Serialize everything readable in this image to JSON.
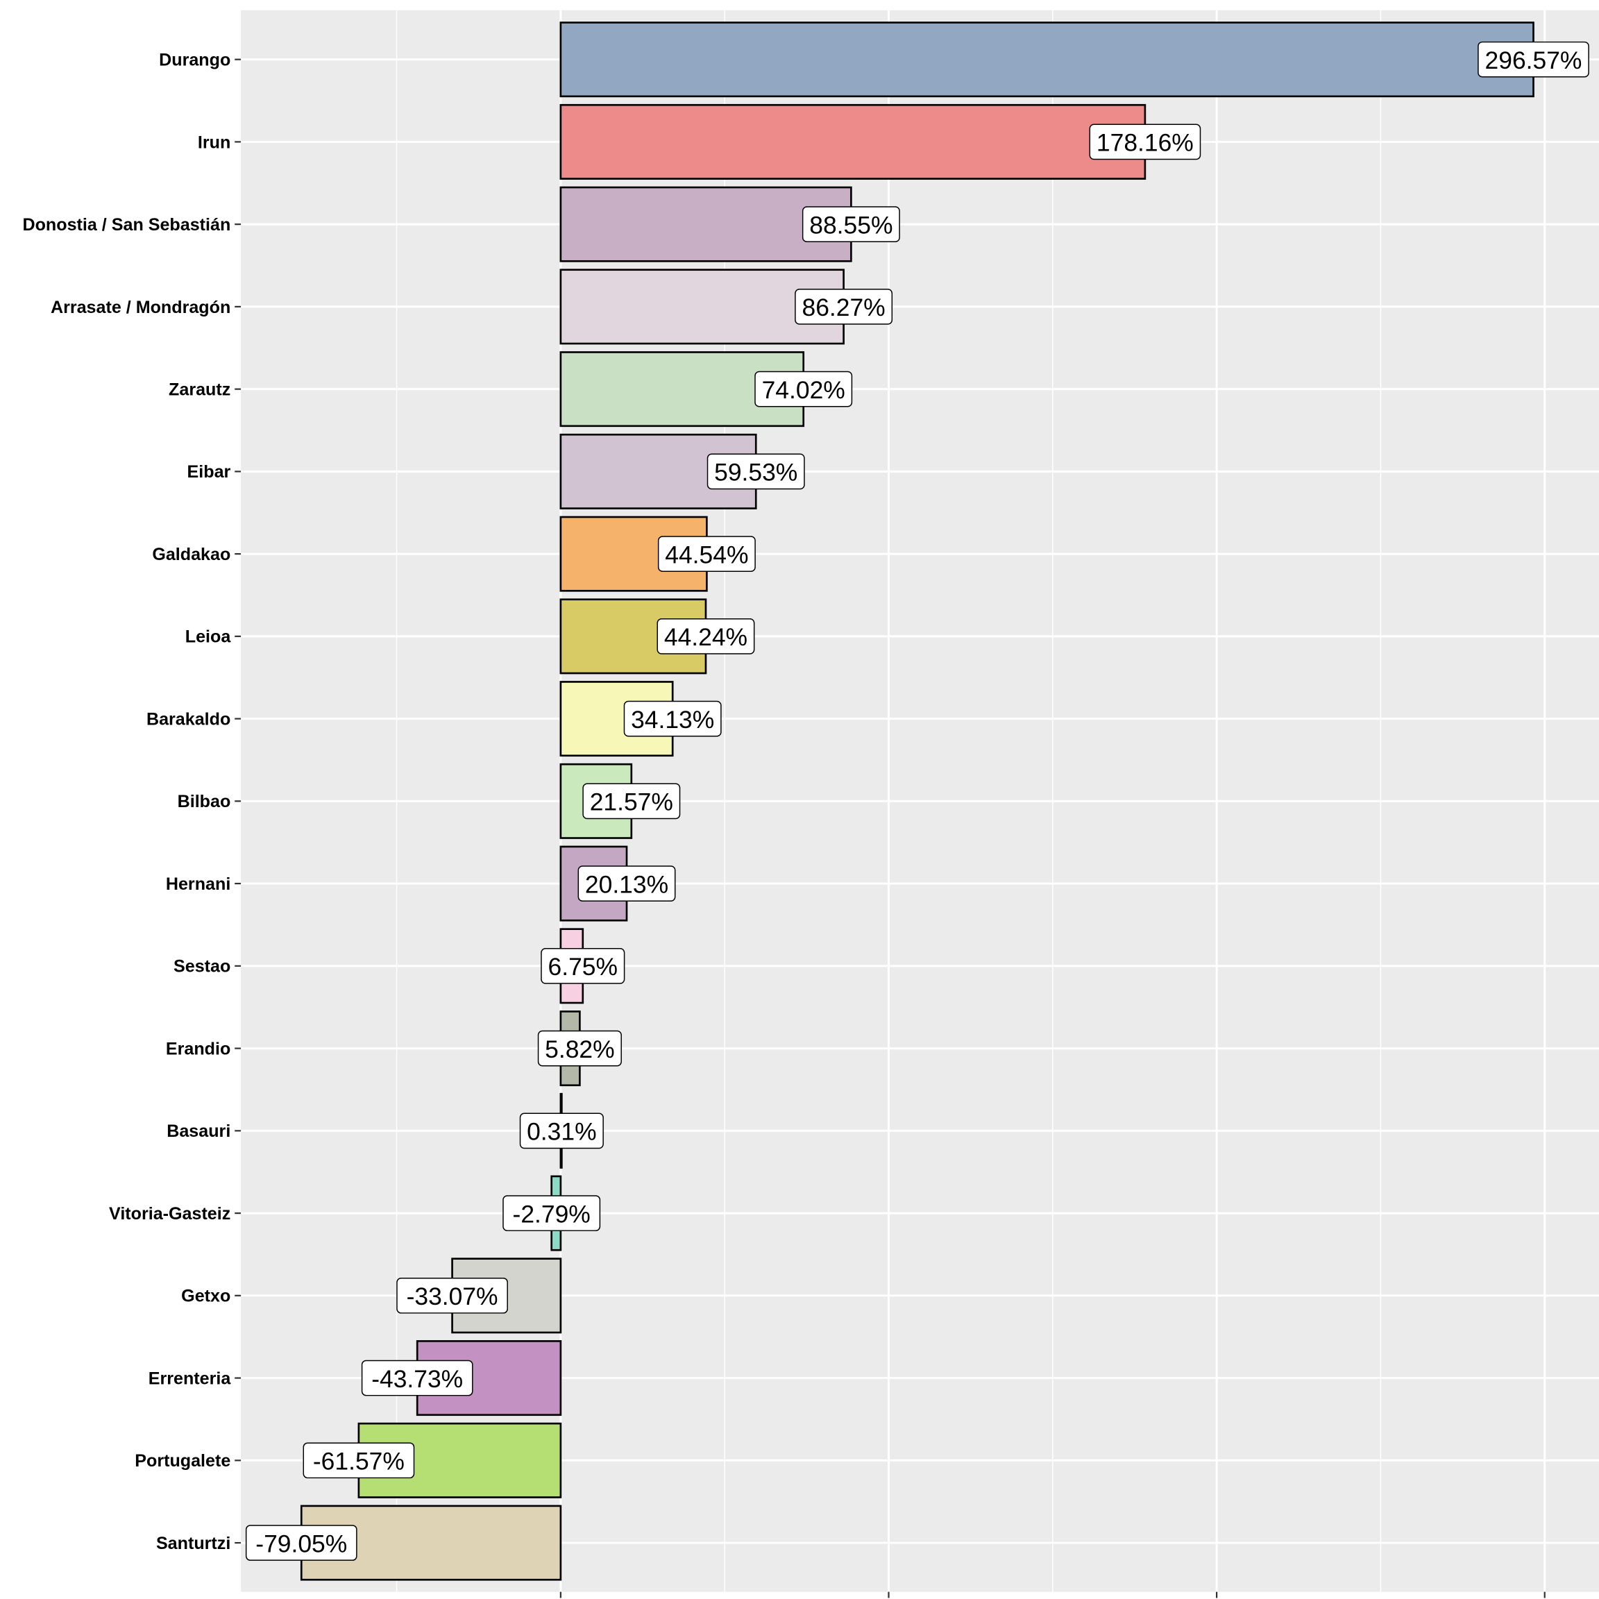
{
  "chart_data": {
    "type": "bar",
    "orientation": "horizontal",
    "title": "",
    "xlabel": "",
    "ylabel": "",
    "xlim": [
      -98,
      318
    ],
    "x_major_ticks": [
      0,
      100,
      200,
      300
    ],
    "x_tick_labels_shown": false,
    "grid": true,
    "categories": [
      "Durango",
      "Irun",
      "Donostia / San Sebastián",
      "Arrasate / Mondragón",
      "Zarautz",
      "Eibar",
      "Galdakao",
      "Leioa",
      "Barakaldo",
      "Bilbao",
      "Hernani",
      "Sestao",
      "Erandio",
      "Basauri",
      "Vitoria-Gasteiz",
      "Getxo",
      "Errenteria",
      "Portugalete",
      "Santurtzi"
    ],
    "values": [
      296.57,
      178.16,
      88.55,
      86.27,
      74.02,
      59.53,
      44.54,
      44.24,
      34.13,
      21.57,
      20.13,
      6.75,
      5.82,
      0.31,
      -2.79,
      -33.07,
      -43.73,
      -61.57,
      -79.05
    ],
    "labels": [
      "296.57%",
      "178.16%",
      "88.55%",
      "86.27%",
      "74.02%",
      "59.53%",
      "44.54%",
      "44.24%",
      "34.13%",
      "21.57%",
      "20.13%",
      "6.75%",
      "5.82%",
      "0.31%",
      "-2.79%",
      "-33.07%",
      "-43.73%",
      "-61.57%",
      "-79.05%"
    ],
    "colors": [
      "#92A8C2",
      "#EC8B8A",
      "#C9AFC6",
      "#E1D6DD",
      "#C9E0C4",
      "#D2C3D3",
      "#F5B26B",
      "#D8CB66",
      "#F7F8B8",
      "#CAE9BC",
      "#C4A7C2",
      "#F7D0E2",
      "#B4B8A8",
      "#E8E8E8",
      "#8ED8C6",
      "#D4D4CE",
      "#C391C2",
      "#B5DE73",
      "#DED4B5"
    ]
  }
}
